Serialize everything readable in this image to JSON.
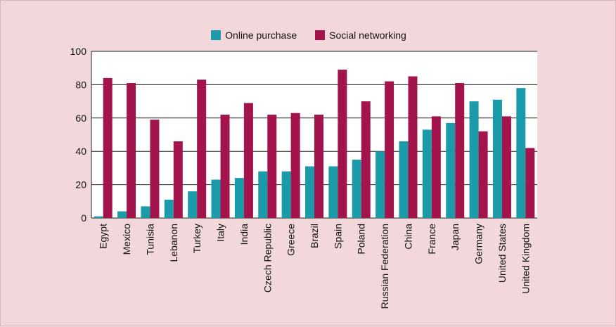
{
  "chart_data": {
    "type": "bar",
    "title": "",
    "xlabel": "",
    "ylabel": "",
    "ylim": [
      0,
      100
    ],
    "yticks": [
      0,
      20,
      40,
      60,
      80,
      100
    ],
    "grid": true,
    "legend_position": "top-center",
    "categories": [
      "Egypt",
      "Mexico",
      "Tunisia",
      "Lebanon",
      "Turkey",
      "Italy",
      "India",
      "Czech Republic",
      "Greece",
      "Brazil",
      "Spain",
      "Poland",
      "Russian Federation",
      "China",
      "France",
      "Japan",
      "Germany",
      "United States",
      "United Kingdom"
    ],
    "series": [
      {
        "name": "Online purchase",
        "color": "#1b9aaa",
        "values": [
          1,
          4,
          7,
          11,
          16,
          23,
          24,
          28,
          28,
          31,
          31,
          35,
          40,
          46,
          53,
          57,
          70,
          71,
          78
        ]
      },
      {
        "name": "Social networking",
        "color": "#a3144c",
        "values": [
          84,
          81,
          59,
          46,
          83,
          62,
          69,
          62,
          63,
          62,
          89,
          70,
          82,
          85,
          61,
          81,
          52,
          61,
          42
        ]
      }
    ]
  }
}
